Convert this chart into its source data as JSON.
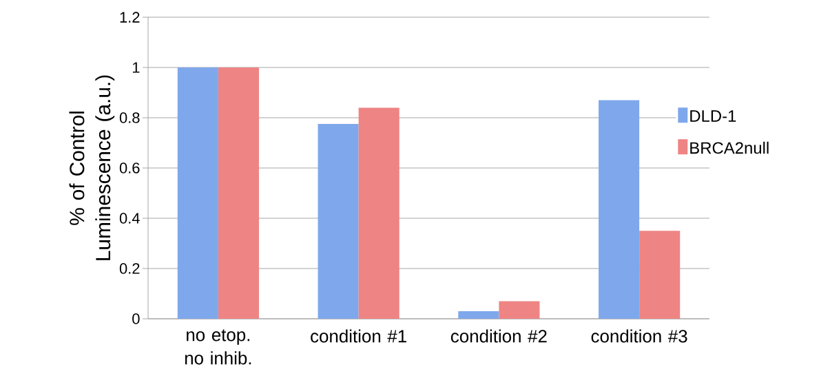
{
  "chart_data": {
    "type": "bar",
    "ylabel": "% of Control Luminescence (a.u.)",
    "categories": [
      "no etop. no inhib.",
      "condition #1",
      "condition #2",
      "condition #3"
    ],
    "series": [
      {
        "name": "DLD-1",
        "color": "#7fa8ec",
        "values": [
          1,
          0.775,
          0.03,
          0.87
        ]
      },
      {
        "name": "BRCA2null",
        "color": "#ee8484",
        "values": [
          1,
          0.84,
          0.07,
          0.35
        ]
      }
    ],
    "ylim": [
      0,
      1.2
    ],
    "yticks": [
      0,
      0.2,
      0.4,
      0.6,
      0.8,
      1,
      1.2
    ],
    "grid": "y",
    "legend": "right"
  }
}
